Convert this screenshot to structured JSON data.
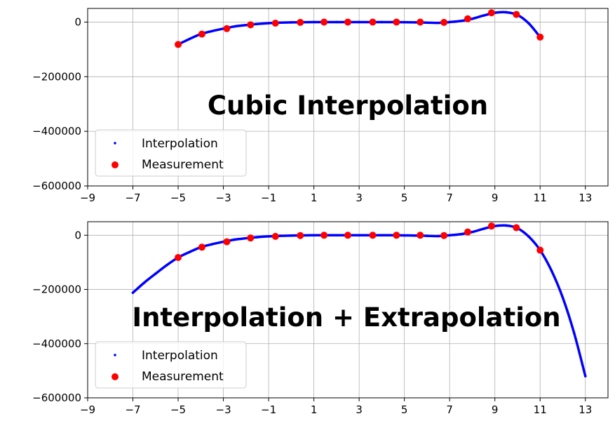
{
  "chart_data": [
    {
      "type": "scatter",
      "annotation": "Cubic Interpolation",
      "xlim": [
        -9,
        14
      ],
      "ylim": [
        -600000,
        50000
      ],
      "xticks": [
        -9,
        -7,
        -5,
        -3,
        -1,
        1,
        3,
        5,
        7,
        9,
        11,
        13
      ],
      "yticks": [
        0,
        -200000,
        -400000,
        -600000
      ],
      "ytick_labels": [
        "0",
        "−200000",
        "−400000",
        "−600000"
      ],
      "xtick_labels": [
        "−9",
        "−7",
        "−5",
        "−3",
        "−1",
        "1",
        "3",
        "5",
        "7",
        "9",
        "11",
        "13"
      ],
      "grid": true,
      "legend": {
        "placement": "lower-left",
        "entries": [
          "Interpolation",
          "Measurement"
        ]
      },
      "series": [
        {
          "name": "Interpolation",
          "color": "#0000ff",
          "marker": "small-dot",
          "x": [
            -5,
            -4.5,
            -4,
            -3.5,
            -3,
            -2.5,
            -2,
            -1.5,
            -1,
            -0.5,
            0,
            0.5,
            1,
            1.5,
            2,
            2.5,
            3,
            3.5,
            4,
            4.5,
            5,
            5.5,
            6,
            6.5,
            7,
            7.5,
            8,
            8.5,
            9,
            9.5,
            10,
            10.5,
            11
          ],
          "y": [
            -82000,
            -62000,
            -44000,
            -33000,
            -24000,
            -16000,
            -11000,
            -7000,
            -4000,
            -2000,
            -1000,
            -500,
            0,
            0,
            0,
            0,
            0,
            0,
            0,
            0,
            -500,
            -1000,
            -2000,
            -3000,
            0,
            4000,
            12000,
            24000,
            34000,
            36000,
            26000,
            -5000,
            -55000
          ]
        },
        {
          "name": "Measurement",
          "color": "#ff0000",
          "marker": "dot",
          "x": [
            -5,
            -3.95,
            -2.85,
            -1.8,
            -0.7,
            0.4,
            1.45,
            2.5,
            3.6,
            4.65,
            5.7,
            6.75,
            7.8,
            8.85,
            9.95,
            11
          ],
          "y": [
            -82000,
            -44000,
            -24000,
            -10000,
            -4000,
            -1000,
            0,
            0,
            0,
            0,
            0,
            -1000,
            12000,
            34000,
            28000,
            -55000
          ]
        }
      ]
    },
    {
      "type": "scatter",
      "annotation": "Interpolation + Extrapolation",
      "xlim": [
        -9,
        14
      ],
      "ylim": [
        -600000,
        50000
      ],
      "xticks": [
        -9,
        -7,
        -5,
        -3,
        -1,
        1,
        3,
        5,
        7,
        9,
        11,
        13
      ],
      "yticks": [
        0,
        -200000,
        -400000,
        -600000
      ],
      "ytick_labels": [
        "0",
        "−200000",
        "−400000",
        "−600000"
      ],
      "xtick_labels": [
        "−9",
        "−7",
        "−5",
        "−3",
        "−1",
        "1",
        "3",
        "5",
        "7",
        "9",
        "11",
        "13"
      ],
      "grid": true,
      "legend": {
        "placement": "lower-left",
        "entries": [
          "Interpolation",
          "Measurement"
        ]
      },
      "series": [
        {
          "name": "Interpolation",
          "color": "#0000ff",
          "marker": "small-dot",
          "x": [
            -7,
            -6.5,
            -6,
            -5.5,
            -5,
            -4.5,
            -4,
            -3.5,
            -3,
            -2.5,
            -2,
            -1.5,
            -1,
            -0.5,
            0,
            0.5,
            1,
            1.5,
            2,
            2.5,
            3,
            3.5,
            4,
            4.5,
            5,
            5.5,
            6,
            6.5,
            7,
            7.5,
            8,
            8.5,
            9,
            9.5,
            10,
            10.5,
            11,
            11.5,
            12,
            12.5,
            13
          ],
          "y": [
            -212000,
            -175000,
            -142000,
            -110000,
            -82000,
            -62000,
            -44000,
            -33000,
            -24000,
            -16000,
            -11000,
            -7000,
            -4000,
            -2000,
            -1000,
            -500,
            0,
            0,
            0,
            0,
            0,
            0,
            0,
            0,
            -500,
            -1000,
            -2000,
            -3000,
            0,
            4000,
            12000,
            24000,
            34000,
            36000,
            26000,
            -5000,
            -55000,
            -130000,
            -230000,
            -360000,
            -520000
          ]
        },
        {
          "name": "Measurement",
          "color": "#ff0000",
          "marker": "dot",
          "x": [
            -5,
            -3.95,
            -2.85,
            -1.8,
            -0.7,
            0.4,
            1.45,
            2.5,
            3.6,
            4.65,
            5.7,
            6.75,
            7.8,
            8.85,
            9.95,
            11
          ],
          "y": [
            -82000,
            -44000,
            -24000,
            -10000,
            -4000,
            -1000,
            0,
            0,
            0,
            0,
            0,
            -1000,
            12000,
            34000,
            28000,
            -55000
          ]
        }
      ]
    }
  ]
}
